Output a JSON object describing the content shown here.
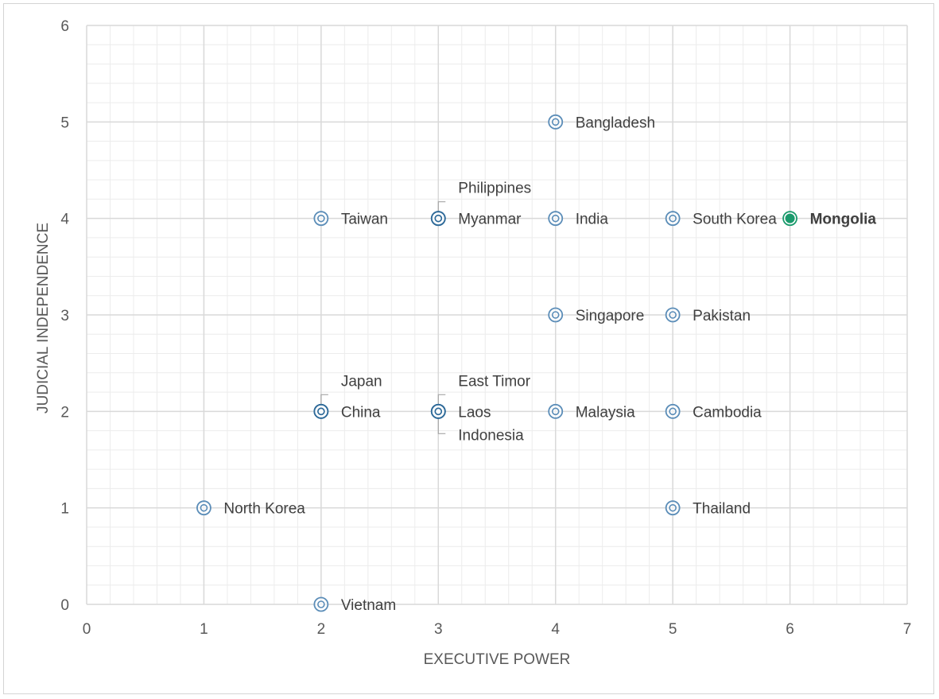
{
  "chart_data": {
    "type": "scatter",
    "title": "",
    "xlabel": "EXECUTIVE POWER",
    "ylabel": "JUDICIAL INDEPENDENCE",
    "xlim": [
      0,
      7
    ],
    "ylim": [
      0,
      6
    ],
    "x_ticks": [
      0,
      1,
      2,
      3,
      4,
      5,
      6,
      7
    ],
    "y_ticks": [
      0,
      1,
      2,
      3,
      4,
      5,
      6
    ],
    "grid": true,
    "minor_grid": true,
    "legend": "none",
    "colors": {
      "marker": "#5b8db8",
      "marker_dark": "#2e6a99",
      "highlight": "#1a9a6c",
      "grid_major": "#d9d9d9",
      "grid_minor": "#ececec"
    },
    "points": [
      {
        "label": "North Korea",
        "x": 1,
        "y": 1
      },
      {
        "label": "Vietnam",
        "x": 2,
        "y": 0
      },
      {
        "label": "China",
        "x": 2,
        "y": 2
      },
      {
        "label": "Japan",
        "x": 2,
        "y": 2
      },
      {
        "label": "Taiwan",
        "x": 2,
        "y": 4
      },
      {
        "label": "Laos",
        "x": 3,
        "y": 2
      },
      {
        "label": "East Timor",
        "x": 3,
        "y": 2
      },
      {
        "label": "Indonesia",
        "x": 3,
        "y": 2
      },
      {
        "label": "Myanmar",
        "x": 3,
        "y": 4
      },
      {
        "label": "Philippines",
        "x": 3,
        "y": 4
      },
      {
        "label": "Malaysia",
        "x": 4,
        "y": 2
      },
      {
        "label": "Singapore",
        "x": 4,
        "y": 3
      },
      {
        "label": "India",
        "x": 4,
        "y": 4
      },
      {
        "label": "Bangladesh",
        "x": 4,
        "y": 5
      },
      {
        "label": "Thailand",
        "x": 5,
        "y": 1
      },
      {
        "label": "Cambodia",
        "x": 5,
        "y": 2
      },
      {
        "label": "Pakistan",
        "x": 5,
        "y": 3
      },
      {
        "label": "South Korea",
        "x": 5,
        "y": 4
      },
      {
        "label": "Mongolia",
        "x": 6,
        "y": 4,
        "highlight": true
      }
    ]
  }
}
